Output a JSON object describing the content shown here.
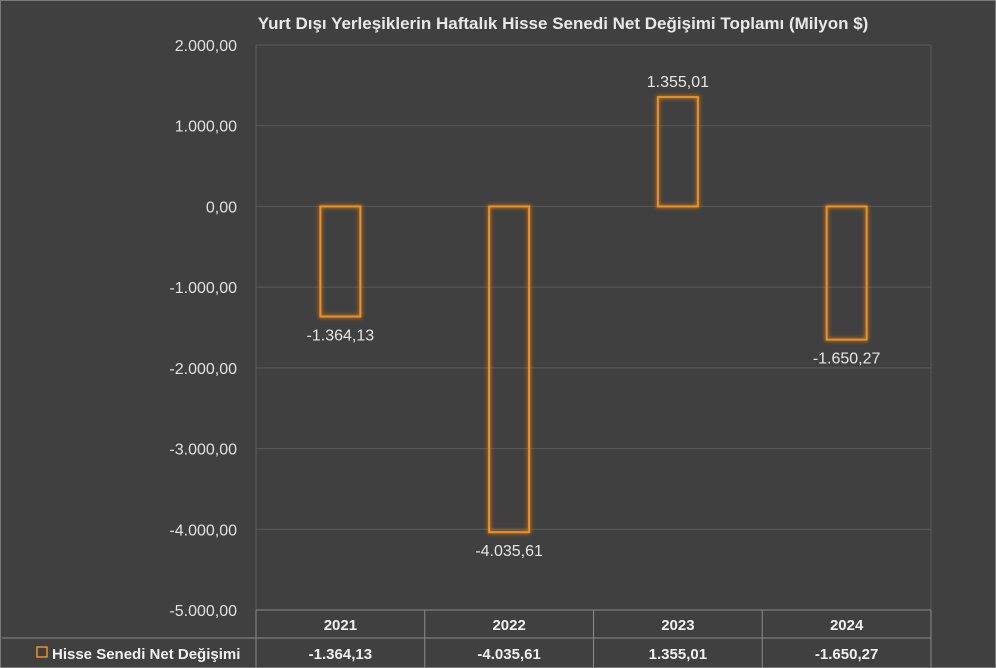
{
  "chart_data": {
    "type": "bar",
    "title": "Yurt Dışı Yerleşiklerin Haftalık Hisse Senedi Net Değişimi Toplamı (Milyon $)",
    "categories": [
      "2021",
      "2022",
      "2023",
      "2024"
    ],
    "series": [
      {
        "name": "Hisse Senedi Net Değişimi",
        "values": [
          -1364.13,
          -4035.61,
          1355.01,
          -1650.27
        ],
        "labels": [
          "-1.364,13",
          "-4.035,61",
          "1.355,01",
          "-1.650,27"
        ],
        "color": "#f0901e"
      }
    ],
    "ylim": [
      -5000,
      2000
    ],
    "yticks": [
      2000,
      1000,
      0,
      -1000,
      -2000,
      -3000,
      -4000,
      -5000
    ],
    "ytick_labels": [
      "2.000,00",
      "1.000,00",
      "0,00",
      "-1.000,00",
      "-2.000,00",
      "-3.000,00",
      "-4.000,00",
      "-5.000,00"
    ],
    "grid": true,
    "data_table": true,
    "colors": {
      "background": "#404040",
      "grid": "#5a5a5a",
      "bar_outline": "#f0901e",
      "text": "#e6e6e6"
    }
  }
}
